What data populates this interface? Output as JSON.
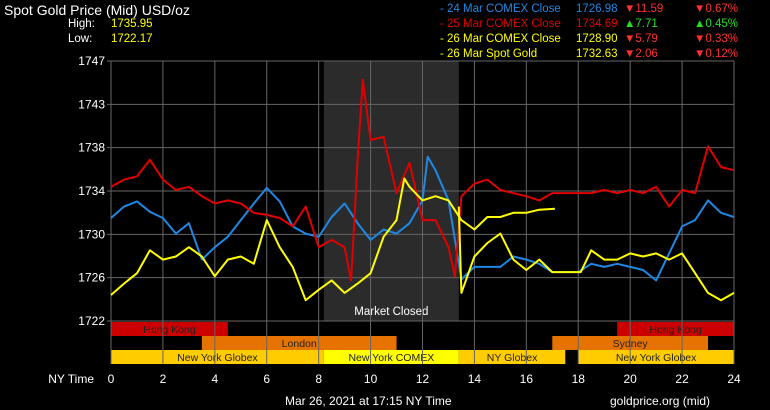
{
  "header": {
    "title": "Spot Gold Price (Mid) USD/oz",
    "high_label": "High:",
    "high": "1735.95",
    "low_label": "Low:",
    "low": "1722.17"
  },
  "legend": [
    {
      "label": "- 24 Mar COMEX Close",
      "value": "1726.98",
      "change": "11.59",
      "pct": "0.67%",
      "dir": "down",
      "color": "#1e88e5"
    },
    {
      "label": "- 25 Mar COMEX Close",
      "value": "1734.69",
      "change": "7.71",
      "pct": "0.45%",
      "dir": "up",
      "color": "#e00000"
    },
    {
      "label": "- 26 Mar COMEX Close",
      "value": "1728.90",
      "change": "5.79",
      "pct": "0.33%",
      "dir": "down",
      "color": "#ffff00"
    },
    {
      "label": "- 26 Mar Spot Gold",
      "value": "1732.63",
      "change": "2.06",
      "pct": "0.12%",
      "dir": "down",
      "color": "#ffff00"
    }
  ],
  "footer": {
    "timestamp": "Mar 26, 2021 at 17:15 NY Time",
    "source": "goldprice.org (mid)"
  },
  "chart_data": {
    "type": "line",
    "title": "Spot Gold Price (Mid) USD/oz",
    "xlabel": "NY Time",
    "ylabel": "",
    "xlim": [
      0,
      24
    ],
    "ylim": [
      1722,
      1747
    ],
    "x_ticks": [
      "0",
      "2",
      "4",
      "6",
      "8",
      "10",
      "12",
      "14",
      "16",
      "18",
      "20",
      "22",
      "24"
    ],
    "y_ticks": [
      "1747",
      "1743",
      "1738",
      "1734",
      "1730",
      "1726",
      "1722"
    ],
    "grid": true,
    "shaded": {
      "from": 8.2,
      "to": 13.4,
      "label": "Market Closed"
    },
    "series": [
      {
        "name": "24 Mar COMEX Close",
        "color": "#1e88e5",
        "x": [
          0,
          0.5,
          1,
          1.5,
          2,
          2.5,
          3,
          3.5,
          4,
          4.5,
          5,
          5.5,
          6,
          6.5,
          7,
          7.5,
          8,
          8.5,
          9,
          9.5,
          10,
          10.5,
          11,
          11.5,
          12,
          12.2,
          12.5,
          13,
          13.5,
          14,
          14.5,
          15,
          15.5,
          16,
          16.5,
          17,
          17.5,
          18,
          18.5,
          19,
          19.5,
          20,
          20.5,
          21,
          21.5,
          22,
          22.5,
          23,
          23.5,
          24
        ],
        "y": [
          1731.9,
          1733.0,
          1733.5,
          1732.5,
          1731.9,
          1730.4,
          1731.4,
          1727.9,
          1729.1,
          1730.1,
          1731.7,
          1733.3,
          1734.8,
          1733.5,
          1731.1,
          1730.4,
          1730.1,
          1732.0,
          1733.3,
          1731.4,
          1729.8,
          1730.8,
          1730.4,
          1731.4,
          1733.6,
          1737.8,
          1736.5,
          1733.6,
          1726.0,
          1727.2,
          1727.2,
          1727.2,
          1728.2,
          1727.9,
          1727.5,
          1726.7,
          1726.7,
          1726.7,
          1727.5,
          1727.2,
          1727.5,
          1727.2,
          1726.9,
          1725.9,
          1728.5,
          1731.1,
          1731.7,
          1733.6,
          1732.4,
          1732.0
        ]
      },
      {
        "name": "25 Mar COMEX Close",
        "color": "#e00000",
        "x": [
          0,
          0.5,
          1,
          1.5,
          2,
          2.5,
          3,
          3.5,
          4,
          4.5,
          5,
          5.5,
          6,
          6.5,
          7,
          7.5,
          8,
          8.5,
          9,
          9.25,
          9.5,
          9.7,
          10,
          10.5,
          11,
          11.5,
          12,
          12.5,
          13,
          13.25,
          13.5,
          14,
          14.5,
          15,
          15.5,
          16,
          16.5,
          17,
          18.5,
          19,
          19.5,
          20,
          20.5,
          21,
          21.5,
          22,
          22.5,
          23,
          23.5,
          24
        ],
        "y": [
          1734.9,
          1735.6,
          1735.9,
          1737.5,
          1735.6,
          1734.6,
          1734.9,
          1734.0,
          1733.3,
          1733.6,
          1733.3,
          1732.4,
          1732.2,
          1731.9,
          1731.1,
          1733.0,
          1729.1,
          1729.8,
          1729.1,
          1725.9,
          1737.5,
          1745.2,
          1739.4,
          1739.7,
          1734.3,
          1737.2,
          1731.7,
          1731.7,
          1729.1,
          1726.3,
          1734.0,
          1735.2,
          1735.6,
          1734.6,
          1734.3,
          1734.0,
          1733.6,
          1734.3,
          1734.3,
          1734.6,
          1734.3,
          1734.6,
          1734.3,
          1734.9,
          1733.0,
          1734.6,
          1734.3,
          1738.8,
          1736.8,
          1736.5
        ]
      },
      {
        "name": "26 Mar COMEX Close",
        "color": "#ffff00",
        "x": [
          0,
          0.5,
          1,
          1.5,
          2,
          2.5,
          3,
          3.5,
          4,
          4.5,
          5,
          5.5,
          6,
          6.5,
          7,
          7.5,
          8,
          8.5,
          9,
          9.5,
          10,
          10.5,
          11,
          11.3,
          11.5,
          12,
          12.5,
          13,
          13.5,
          14,
          14.5,
          15,
          15.5,
          16,
          16.5,
          17.1
        ],
        "y": [
          1724.5,
          1725.6,
          1726.6,
          1728.8,
          1727.9,
          1728.2,
          1729.1,
          1728.2,
          1726.3,
          1727.9,
          1728.2,
          1727.5,
          1731.7,
          1729.1,
          1727.2,
          1724.0,
          1725.0,
          1725.9,
          1724.7,
          1725.6,
          1726.6,
          1730.1,
          1731.7,
          1735.7,
          1734.9,
          1733.6,
          1734.0,
          1733.6,
          1731.7,
          1730.8,
          1732.0,
          1732.0,
          1732.4,
          1732.4,
          1732.7,
          1732.8
        ]
      },
      {
        "name": "26 Mar Spot Gold",
        "color": "#ffff00",
        "x": [
          13.4,
          13.5,
          14,
          14.5,
          15,
          15.5,
          16,
          16.5,
          17,
          18.1,
          18.5,
          19,
          19.5,
          20,
          20.5,
          21,
          21.5,
          22,
          22.5,
          23,
          23.5,
          24
        ],
        "y": [
          1733.0,
          1724.7,
          1728.2,
          1729.5,
          1730.4,
          1727.9,
          1726.9,
          1727.9,
          1726.7,
          1726.7,
          1728.8,
          1727.9,
          1727.9,
          1728.5,
          1728.2,
          1728.5,
          1727.9,
          1728.5,
          1726.6,
          1724.7,
          1724.0,
          1724.7
        ]
      }
    ],
    "sessions": [
      {
        "name": "Hong Kong",
        "row": 0,
        "from": 0,
        "to": 4.5,
        "color": "#cc0000"
      },
      {
        "name": "Hong Kong",
        "row": 0,
        "from": 19.5,
        "to": 24,
        "color": "#cc0000"
      },
      {
        "name": "London",
        "row": 1,
        "from": 3.5,
        "to": 11,
        "color": "#e67300"
      },
      {
        "name": "Sydney",
        "row": 1,
        "from": 17,
        "to": 23,
        "color": "#e67300"
      },
      {
        "name": "New York Globex",
        "row": 2,
        "from": 0,
        "to": 8.2,
        "color": "#ffcc00"
      },
      {
        "name": "New York COMEX",
        "row": 2,
        "from": 8.2,
        "to": 13.4,
        "color": "#ffff00"
      },
      {
        "name": "NY Globex",
        "row": 2,
        "from": 13.4,
        "to": 17.5,
        "color": "#ffcc00"
      },
      {
        "name": "New York Globex",
        "row": 2,
        "from": 18,
        "to": 24,
        "color": "#ffcc00"
      }
    ]
  }
}
